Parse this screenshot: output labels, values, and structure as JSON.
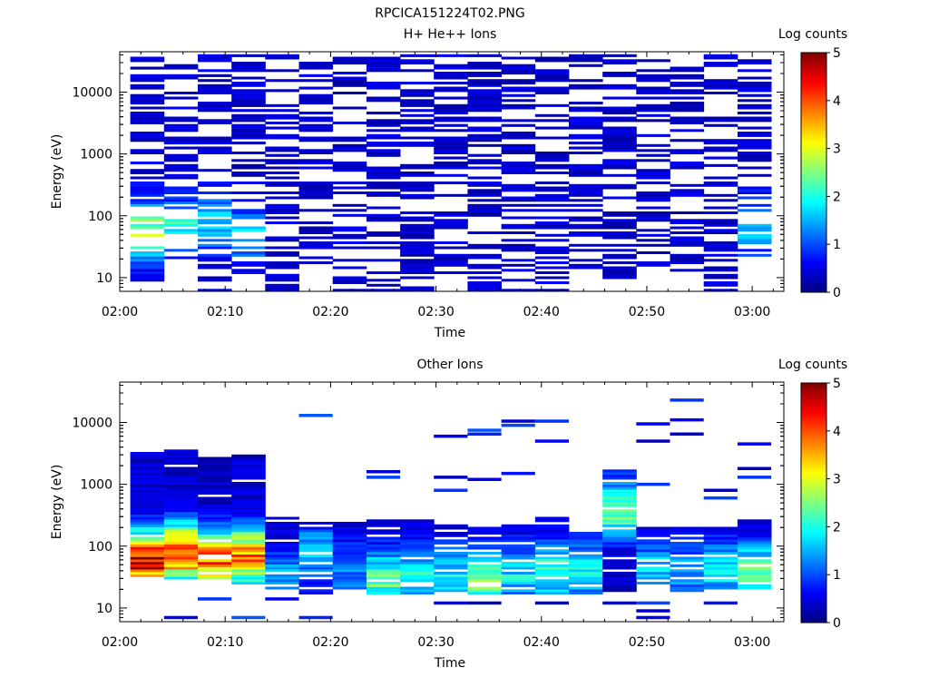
{
  "figure": {
    "title": "RPCICA151224T02.PNG"
  },
  "colormap": {
    "stops": [
      "#00007f",
      "#0000ff",
      "#007fff",
      "#00ffff",
      "#7fff7f",
      "#ffff00",
      "#ff7f00",
      "#ff0000",
      "#7f0000"
    ]
  },
  "chart_data": [
    {
      "type": "heatmap",
      "title": "H+ He++ Ions",
      "xlabel": "Time",
      "ylabel": "Energy (eV)",
      "x_ticks": [
        "02:00",
        "02:10",
        "02:20",
        "02:30",
        "02:40",
        "02:50",
        "03:00"
      ],
      "x_range_minutes": [
        0,
        63
      ],
      "time_bin_minutes": 3.2,
      "y_ticks": [
        "10",
        "100",
        "1000",
        "10000"
      ],
      "y_scale": "log",
      "ylim": [
        6,
        45000
      ],
      "energy_bins": 96,
      "colorbar": {
        "label": "Log counts",
        "min": 0,
        "max": 5,
        "ticks": [
          "0",
          "1",
          "2",
          "3",
          "4",
          "5"
        ]
      },
      "columns": [
        {
          "t": 1.0,
          "occupancy": 0.62,
          "seed": 11,
          "e_lo": 9,
          "e_hi": 42000,
          "peak_e": 55,
          "peak_v": 2.3
        },
        {
          "t": 4.2,
          "occupancy": 0.55,
          "seed": 23,
          "e_lo": 20,
          "e_hi": 42000,
          "peak_e": 60,
          "peak_v": 1.7
        },
        {
          "t": 7.4,
          "occupancy": 0.55,
          "seed": 37,
          "e_lo": 6,
          "e_hi": 42000,
          "peak_e": 80,
          "peak_v": 1.3
        },
        {
          "t": 10.6,
          "occupancy": 0.52,
          "seed": 41,
          "e_lo": 11,
          "e_hi": 42000,
          "peak_e": 50,
          "peak_v": 1.2
        },
        {
          "t": 13.8,
          "occupancy": 0.45,
          "seed": 53,
          "e_lo": 6,
          "e_hi": 42000,
          "peak_e": 0,
          "peak_v": 0
        },
        {
          "t": 17.0,
          "occupancy": 0.5,
          "seed": 67,
          "e_lo": 14,
          "e_hi": 42000,
          "peak_e": 0,
          "peak_v": 0
        },
        {
          "t": 20.2,
          "occupancy": 0.48,
          "seed": 71,
          "e_lo": 6,
          "e_hi": 42000,
          "peak_e": 0,
          "peak_v": 0
        },
        {
          "t": 23.4,
          "occupancy": 0.5,
          "seed": 83,
          "e_lo": 6,
          "e_hi": 42000,
          "peak_e": 0,
          "peak_v": 0
        },
        {
          "t": 26.6,
          "occupancy": 0.55,
          "seed": 97,
          "e_lo": 6,
          "e_hi": 42000,
          "peak_e": 0,
          "peak_v": 0
        },
        {
          "t": 29.8,
          "occupancy": 0.5,
          "seed": 101,
          "e_lo": 9,
          "e_hi": 42000,
          "peak_e": 0,
          "peak_v": 0
        },
        {
          "t": 33.0,
          "occupancy": 0.55,
          "seed": 113,
          "e_lo": 6,
          "e_hi": 42000,
          "peak_e": 0,
          "peak_v": 0
        },
        {
          "t": 36.2,
          "occupancy": 0.5,
          "seed": 127,
          "e_lo": 6,
          "e_hi": 42000,
          "peak_e": 0,
          "peak_v": 0
        },
        {
          "t": 39.4,
          "occupancy": 0.48,
          "seed": 131,
          "e_lo": 6,
          "e_hi": 42000,
          "peak_e": 0,
          "peak_v": 0
        },
        {
          "t": 42.6,
          "occupancy": 0.52,
          "seed": 149,
          "e_lo": 14,
          "e_hi": 42000,
          "peak_e": 0,
          "peak_v": 0
        },
        {
          "t": 45.8,
          "occupancy": 0.5,
          "seed": 157,
          "e_lo": 9,
          "e_hi": 42000,
          "peak_e": 0,
          "peak_v": 0
        },
        {
          "t": 49.0,
          "occupancy": 0.48,
          "seed": 163,
          "e_lo": 14,
          "e_hi": 42000,
          "peak_e": 0,
          "peak_v": 0
        },
        {
          "t": 52.2,
          "occupancy": 0.5,
          "seed": 179,
          "e_lo": 9,
          "e_hi": 42000,
          "peak_e": 0,
          "peak_v": 0
        },
        {
          "t": 55.4,
          "occupancy": 0.52,
          "seed": 181,
          "e_lo": 6,
          "e_hi": 42000,
          "peak_e": 0,
          "peak_v": 0
        },
        {
          "t": 58.6,
          "occupancy": 0.52,
          "seed": 191,
          "e_lo": 20,
          "e_hi": 42000,
          "peak_e": 70,
          "peak_v": 1.2
        }
      ]
    },
    {
      "type": "heatmap",
      "title": "Other Ions",
      "xlabel": "Time",
      "ylabel": "Energy (eV)",
      "x_ticks": [
        "02:00",
        "02:10",
        "02:20",
        "02:30",
        "02:40",
        "02:50",
        "03:00"
      ],
      "x_range_minutes": [
        0,
        63
      ],
      "time_bin_minutes": 3.2,
      "y_ticks": [
        "10",
        "100",
        "1000",
        "10000"
      ],
      "y_scale": "log",
      "ylim": [
        6,
        45000
      ],
      "energy_bins": 96,
      "colorbar": {
        "label": "Log counts",
        "min": 0,
        "max": 5,
        "ticks": [
          "0",
          "1",
          "2",
          "3",
          "4",
          "5"
        ]
      },
      "columns": [
        {
          "t": 1.0,
          "occupancy": 0.95,
          "seed": 211,
          "e_lo": 32,
          "e_hi": 3200,
          "peak_e": 60,
          "peak_v": 4.3,
          "sparse_hi": [],
          "sparse_lo": []
        },
        {
          "t": 4.2,
          "occupancy": 0.95,
          "seed": 223,
          "e_lo": 28,
          "e_hi": 3500,
          "peak_e": 80,
          "peak_v": 3.9,
          "sparse_hi": [],
          "sparse_lo": [
            7
          ]
        },
        {
          "t": 7.4,
          "occupancy": 0.95,
          "seed": 227,
          "e_lo": 28,
          "e_hi": 2700,
          "peak_e": 60,
          "peak_v": 3.6,
          "sparse_hi": [],
          "sparse_lo": [
            14
          ]
        },
        {
          "t": 10.6,
          "occupancy": 0.95,
          "seed": 229,
          "e_lo": 25,
          "e_hi": 3100,
          "peak_e": 70,
          "peak_v": 3.3,
          "sparse_hi": [],
          "sparse_lo": [
            7
          ]
        },
        {
          "t": 13.8,
          "occupancy": 0.85,
          "seed": 233,
          "e_lo": 20,
          "e_hi": 300,
          "peak_e": 30,
          "peak_v": 1.1,
          "sparse_hi": [],
          "sparse_lo": [
            14
          ]
        },
        {
          "t": 17.0,
          "occupancy": 0.85,
          "seed": 239,
          "e_lo": 16,
          "e_hi": 250,
          "peak_e": 80,
          "peak_v": 1.3,
          "sparse_hi": [
            13000
          ],
          "sparse_lo": [
            7
          ]
        },
        {
          "t": 20.2,
          "occupancy": 0.85,
          "seed": 241,
          "e_lo": 16,
          "e_hi": 250,
          "peak_e": 40,
          "peak_v": 0.9,
          "sparse_hi": [],
          "sparse_lo": []
        },
        {
          "t": 23.4,
          "occupancy": 0.85,
          "seed": 251,
          "e_lo": 16,
          "e_hi": 300,
          "peak_e": 30,
          "peak_v": 1.9,
          "sparse_hi": [
            1600,
            1300
          ],
          "sparse_lo": []
        },
        {
          "t": 26.6,
          "occupancy": 0.85,
          "seed": 257,
          "e_lo": 16,
          "e_hi": 280,
          "peak_e": 30,
          "peak_v": 1.6,
          "sparse_hi": [],
          "sparse_lo": []
        },
        {
          "t": 29.8,
          "occupancy": 0.85,
          "seed": 263,
          "e_lo": 16,
          "e_hi": 220,
          "peak_e": 35,
          "peak_v": 1.4,
          "sparse_hi": [
            6000,
            1300,
            800
          ],
          "sparse_lo": [
            12
          ]
        },
        {
          "t": 33.0,
          "occupancy": 0.85,
          "seed": 269,
          "e_lo": 16,
          "e_hi": 200,
          "peak_e": 30,
          "peak_v": 2.1,
          "sparse_hi": [
            7500,
            6500,
            1200
          ],
          "sparse_lo": [
            12
          ]
        },
        {
          "t": 36.2,
          "occupancy": 0.85,
          "seed": 271,
          "e_lo": 16,
          "e_hi": 220,
          "peak_e": 35,
          "peak_v": 1.4,
          "sparse_hi": [
            10500,
            9000,
            1500
          ],
          "sparse_lo": []
        },
        {
          "t": 39.4,
          "occupancy": 0.85,
          "seed": 277,
          "e_lo": 16,
          "e_hi": 300,
          "peak_e": 40,
          "peak_v": 1.8,
          "sparse_hi": [
            10500,
            5000
          ],
          "sparse_lo": [
            12
          ]
        },
        {
          "t": 42.6,
          "occupancy": 0.85,
          "seed": 281,
          "e_lo": 16,
          "e_hi": 200,
          "peak_e": 40,
          "peak_v": 1.6,
          "sparse_hi": [],
          "sparse_lo": []
        },
        {
          "t": 45.8,
          "occupancy": 0.9,
          "seed": 283,
          "e_lo": 18,
          "e_hi": 1700,
          "peak_e": 400,
          "peak_v": 2.1,
          "sparse_hi": [],
          "sparse_lo": [
            12
          ]
        },
        {
          "t": 49.0,
          "occupancy": 0.85,
          "seed": 293,
          "e_lo": 18,
          "e_hi": 200,
          "peak_e": 40,
          "peak_v": 1.3,
          "sparse_hi": [
            9500,
            5000,
            1000
          ],
          "sparse_lo": [
            7,
            9,
            12
          ]
        },
        {
          "t": 52.2,
          "occupancy": 0.85,
          "seed": 307,
          "e_lo": 18,
          "e_hi": 220,
          "peak_e": 40,
          "peak_v": 1.0,
          "sparse_hi": [
            23000,
            11000,
            6500
          ],
          "sparse_lo": []
        },
        {
          "t": 55.4,
          "occupancy": 0.85,
          "seed": 311,
          "e_lo": 20,
          "e_hi": 200,
          "peak_e": 40,
          "peak_v": 1.5,
          "sparse_hi": [
            800,
            600
          ],
          "sparse_lo": [
            12
          ]
        },
        {
          "t": 58.6,
          "occupancy": 0.85,
          "seed": 313,
          "e_lo": 20,
          "e_hi": 300,
          "peak_e": 40,
          "peak_v": 1.9,
          "sparse_hi": [
            4500,
            1800,
            1300
          ],
          "sparse_lo": []
        }
      ]
    }
  ]
}
